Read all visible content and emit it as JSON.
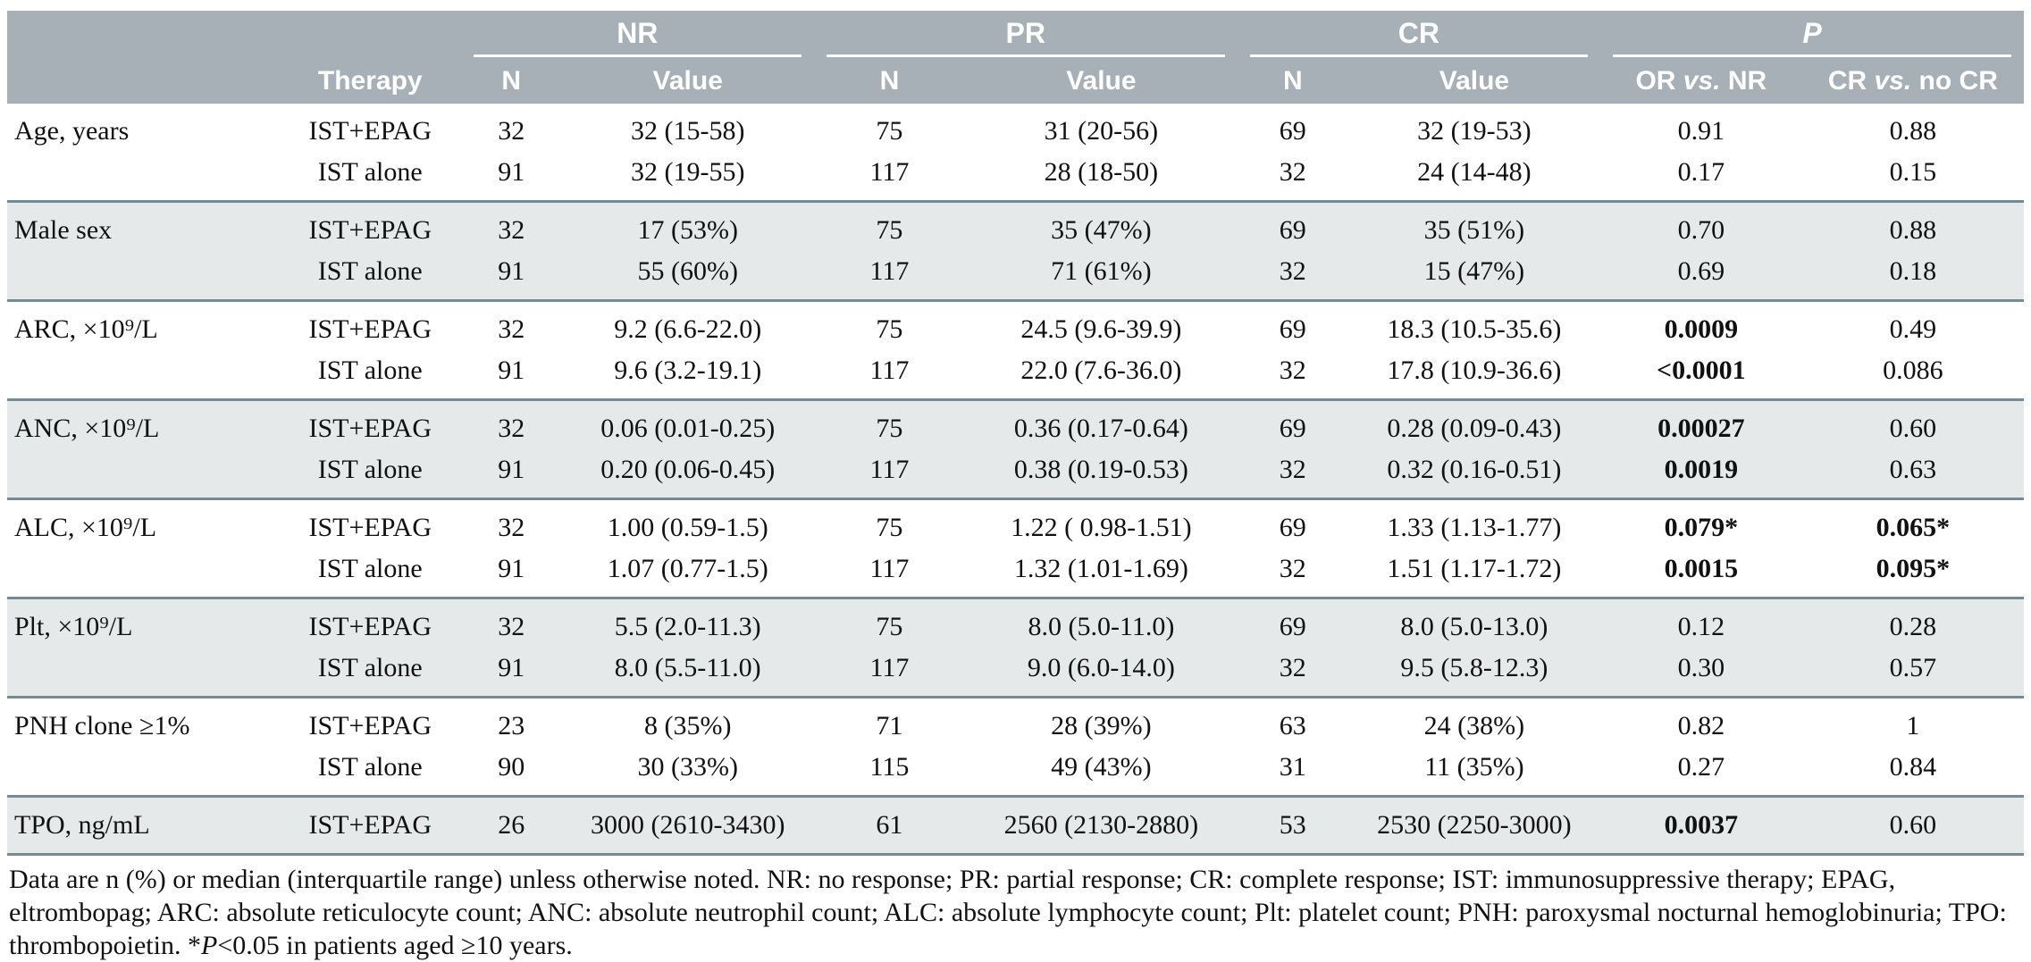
{
  "table": {
    "header": {
      "therapy": "Therapy",
      "n_label": "N",
      "value_label": "Value",
      "groups": [
        {
          "label": "NR"
        },
        {
          "label": "PR"
        },
        {
          "label": "CR"
        },
        {
          "label": "P"
        }
      ],
      "p_cols": [
        {
          "pre": "OR ",
          "it": "vs.",
          "post": " NR"
        },
        {
          "pre": "CR ",
          "it": "vs.",
          "post": " no CR"
        }
      ]
    },
    "groups": [
      {
        "label": "Age, years",
        "shade": false,
        "rows": [
          {
            "therapy": "IST+EPAG",
            "nr_n": "32",
            "nr_v": "32 (15-58)",
            "pr_n": "75",
            "pr_v": "31 (20-56)",
            "cr_n": "69",
            "cr_v": "32 (19-53)",
            "p_or": "0.91",
            "p_or_bold": false,
            "p_cr": "0.88",
            "p_cr_bold": false
          },
          {
            "therapy": "IST alone",
            "nr_n": "91",
            "nr_v": "32 (19-55)",
            "pr_n": "117",
            "pr_v": "28 (18-50)",
            "cr_n": "32",
            "cr_v": "24 (14-48)",
            "p_or": "0.17",
            "p_or_bold": false,
            "p_cr": "0.15",
            "p_cr_bold": false
          }
        ]
      },
      {
        "label": "Male sex",
        "shade": true,
        "rows": [
          {
            "therapy": "IST+EPAG",
            "nr_n": "32",
            "nr_v": "17 (53%)",
            "pr_n": "75",
            "pr_v": "35 (47%)",
            "cr_n": "69",
            "cr_v": "35 (51%)",
            "p_or": "0.70",
            "p_or_bold": false,
            "p_cr": "0.88",
            "p_cr_bold": false
          },
          {
            "therapy": "IST alone",
            "nr_n": "91",
            "nr_v": "55 (60%)",
            "pr_n": "117",
            "pr_v": "71 (61%)",
            "cr_n": "32",
            "cr_v": "15 (47%)",
            "p_or": "0.69",
            "p_or_bold": false,
            "p_cr": "0.18",
            "p_cr_bold": false
          }
        ]
      },
      {
        "label": "ARC, ×10⁹/L",
        "shade": false,
        "rows": [
          {
            "therapy": "IST+EPAG",
            "nr_n": "32",
            "nr_v": "9.2 (6.6-22.0)",
            "pr_n": "75",
            "pr_v": "24.5 (9.6-39.9)",
            "cr_n": "69",
            "cr_v": "18.3 (10.5-35.6)",
            "p_or": "0.0009",
            "p_or_bold": true,
            "p_cr": "0.49",
            "p_cr_bold": false
          },
          {
            "therapy": "IST alone",
            "nr_n": "91",
            "nr_v": "9.6 (3.2-19.1)",
            "pr_n": "117",
            "pr_v": "22.0 (7.6-36.0)",
            "cr_n": "32",
            "cr_v": "17.8 (10.9-36.6)",
            "p_or": "<0.0001",
            "p_or_bold": true,
            "p_cr": "0.086",
            "p_cr_bold": false
          }
        ]
      },
      {
        "label": "ANC, ×10⁹/L",
        "shade": true,
        "rows": [
          {
            "therapy": "IST+EPAG",
            "nr_n": "32",
            "nr_v": "0.06 (0.01-0.25)",
            "pr_n": "75",
            "pr_v": "0.36 (0.17-0.64)",
            "cr_n": "69",
            "cr_v": "0.28 (0.09-0.43)",
            "p_or": "0.00027",
            "p_or_bold": true,
            "p_cr": "0.60",
            "p_cr_bold": false
          },
          {
            "therapy": "IST alone",
            "nr_n": "91",
            "nr_v": "0.20 (0.06-0.45)",
            "pr_n": "117",
            "pr_v": "0.38 (0.19-0.53)",
            "cr_n": "32",
            "cr_v": "0.32 (0.16-0.51)",
            "p_or": "0.0019",
            "p_or_bold": true,
            "p_cr": "0.63",
            "p_cr_bold": false
          }
        ]
      },
      {
        "label": "ALC, ×10⁹/L",
        "shade": false,
        "rows": [
          {
            "therapy": "IST+EPAG",
            "nr_n": "32",
            "nr_v": "1.00 (0.59-1.5)",
            "pr_n": "75",
            "pr_v": "1.22 ( 0.98-1.51)",
            "cr_n": "69",
            "cr_v": "1.33 (1.13-1.77)",
            "p_or": "0.079*",
            "p_or_bold": true,
            "p_cr": "0.065*",
            "p_cr_bold": true
          },
          {
            "therapy": "IST alone",
            "nr_n": "91",
            "nr_v": "1.07 (0.77-1.5)",
            "pr_n": "117",
            "pr_v": "1.32 (1.01-1.69)",
            "cr_n": "32",
            "cr_v": "1.51 (1.17-1.72)",
            "p_or": "0.0015",
            "p_or_bold": true,
            "p_cr": "0.095*",
            "p_cr_bold": true
          }
        ]
      },
      {
        "label": "Plt, ×10⁹/L",
        "shade": true,
        "rows": [
          {
            "therapy": "IST+EPAG",
            "nr_n": "32",
            "nr_v": "5.5 (2.0-11.3)",
            "pr_n": "75",
            "pr_v": "8.0 (5.0-11.0)",
            "cr_n": "69",
            "cr_v": "8.0 (5.0-13.0)",
            "p_or": "0.12",
            "p_or_bold": false,
            "p_cr": "0.28",
            "p_cr_bold": false
          },
          {
            "therapy": "IST alone",
            "nr_n": "91",
            "nr_v": "8.0 (5.5-11.0)",
            "pr_n": "117",
            "pr_v": "9.0 (6.0-14.0)",
            "cr_n": "32",
            "cr_v": "9.5 (5.8-12.3)",
            "p_or": "0.30",
            "p_or_bold": false,
            "p_cr": "0.57",
            "p_cr_bold": false
          }
        ]
      },
      {
        "label": "PNH clone ≥1%",
        "shade": false,
        "rows": [
          {
            "therapy": "IST+EPAG",
            "nr_n": "23",
            "nr_v": "8 (35%)",
            "pr_n": "71",
            "pr_v": "28 (39%)",
            "cr_n": "63",
            "cr_v": "24 (38%)",
            "p_or": "0.82",
            "p_or_bold": false,
            "p_cr": "1",
            "p_cr_bold": false
          },
          {
            "therapy": "IST alone",
            "nr_n": "90",
            "nr_v": "30 (33%)",
            "pr_n": "115",
            "pr_v": "49 (43%)",
            "cr_n": "31",
            "cr_v": "11 (35%)",
            "p_or": "0.27",
            "p_or_bold": false,
            "p_cr": "0.84",
            "p_cr_bold": false
          }
        ]
      },
      {
        "label": "TPO, ng/mL",
        "shade": true,
        "rows": [
          {
            "therapy": "IST+EPAG",
            "nr_n": "26",
            "nr_v": "3000 (2610-3430)",
            "pr_n": "61",
            "pr_v": "2560 (2130-2880)",
            "cr_n": "53",
            "cr_v": "2530 (2250-3000)",
            "p_or": "0.0037",
            "p_or_bold": true,
            "p_cr": "0.60",
            "p_cr_bold": false
          }
        ]
      }
    ],
    "footnote": {
      "main": "Data are n (%) or median (interquartile range) unless otherwise noted. NR: no response; PR: partial response; CR: complete response; IST: immunosuppressive therapy; EPAG, eltrombopag; ARC: absolute reticulocyte count; ANC: absolute neutrophil count; ALC: absolute lymphocyte count; Plt: platelet count; PNH: paroxysmal nocturnal hemoglobinuria; TPO: thrombopoietin. *",
      "p": "P",
      "rest": "<0.05 in patients aged ≥10 years."
    }
  }
}
